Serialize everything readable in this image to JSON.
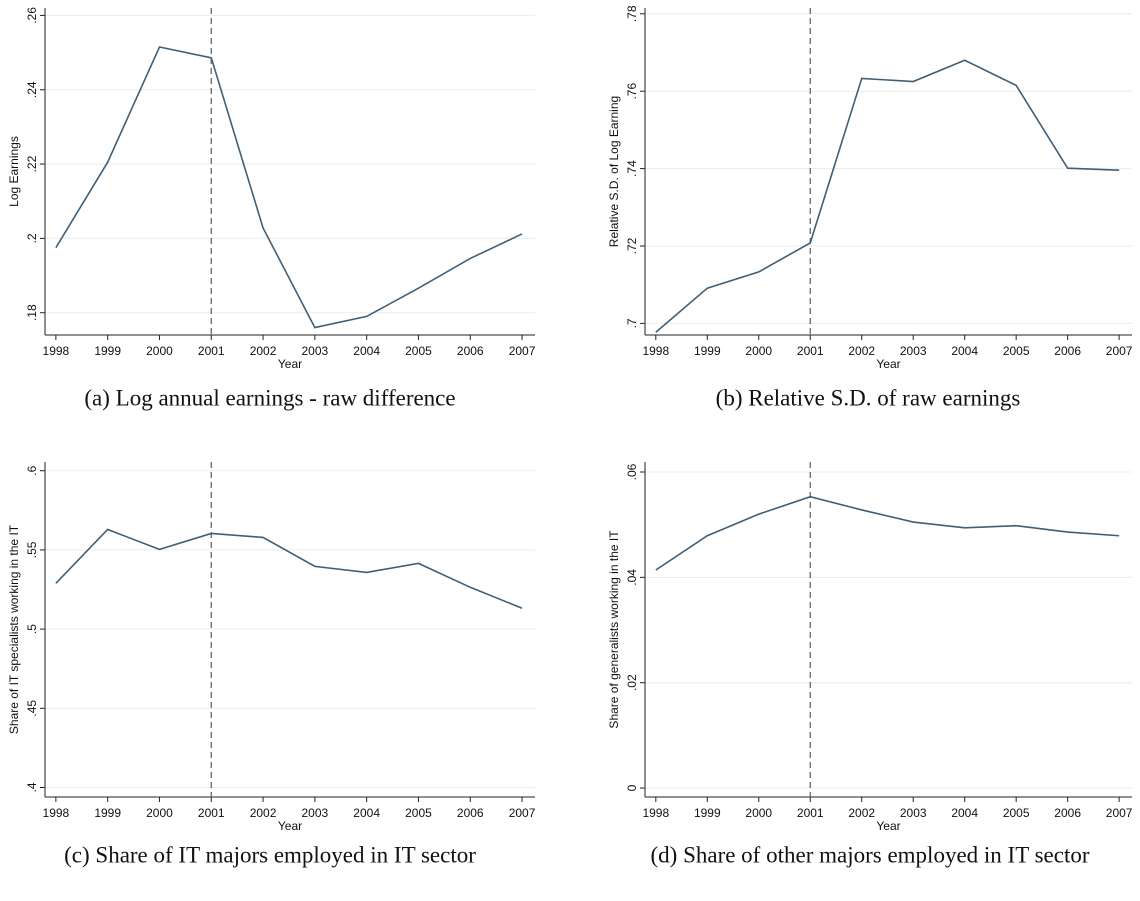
{
  "chart_data": [
    {
      "type": "line",
      "caption": "(a) Log annual earnings - raw difference",
      "ylabel": "Log Earnings",
      "xlabel": "Year",
      "x": [
        1998,
        1999,
        2000,
        2001,
        2002,
        2003,
        2004,
        2005,
        2006,
        2007
      ],
      "values": [
        0.1975,
        0.2205,
        0.2515,
        0.2486,
        0.2028,
        0.176,
        0.179,
        0.1866,
        0.1946,
        0.2012
      ],
      "color": "#3f5f78",
      "xlim": [
        1997.79,
        2007.25
      ],
      "xticks": [
        1998,
        1999,
        2000,
        2001,
        2002,
        2003,
        2004,
        2005,
        2006,
        2007
      ],
      "ylim": [
        0.174,
        0.262
      ],
      "yticks": [
        {
          "value": 0.18,
          "label": ".18"
        },
        {
          "value": 0.2,
          "label": ".2"
        },
        {
          "value": 0.22,
          "label": ".22"
        },
        {
          "value": 0.24,
          "label": ".24"
        },
        {
          "value": 0.26,
          "label": ".26"
        }
      ],
      "grid": true,
      "vline": 2001
    },
    {
      "type": "line",
      "caption": "(b) Relative S.D. of raw earnings",
      "ylabel": "Relative S.D. of Log Earning",
      "xlabel": "Year",
      "x": [
        1998,
        1999,
        2000,
        2001,
        2002,
        2003,
        2004,
        2005,
        2006,
        2007
      ],
      "values": [
        0.6977,
        0.7091,
        0.7133,
        0.7208,
        0.7633,
        0.7625,
        0.768,
        0.7615,
        0.7401,
        0.7396
      ],
      "color": "#3f5f78",
      "xlim": [
        1997.79,
        2007.25
      ],
      "xticks": [
        1998,
        1999,
        2000,
        2001,
        2002,
        2003,
        2004,
        2005,
        2006,
        2007
      ],
      "ylim": [
        0.697,
        0.7815
      ],
      "yticks": [
        {
          "value": 0.7,
          "label": ".7"
        },
        {
          "value": 0.72,
          "label": ".72"
        },
        {
          "value": 0.74,
          "label": ".74"
        },
        {
          "value": 0.76,
          "label": ".76"
        },
        {
          "value": 0.78,
          "label": ".78"
        }
      ],
      "grid": true,
      "vline": 2001
    },
    {
      "type": "line",
      "caption": "(c) Share of IT majors employed in IT sector",
      "ylabel": "Share of IT specialists working in the IT",
      "xlabel": "Year",
      "x": [
        1998,
        1999,
        2000,
        2001,
        2002,
        2003,
        2004,
        2005,
        2006,
        2007
      ],
      "values": [
        0.5289,
        0.5629,
        0.5503,
        0.5604,
        0.5579,
        0.5396,
        0.5358,
        0.5415,
        0.5264,
        0.5132
      ],
      "color": "#3f5f78",
      "xlim": [
        1997.79,
        2007.25
      ],
      "xticks": [
        1998,
        1999,
        2000,
        2001,
        2002,
        2003,
        2004,
        2005,
        2006,
        2007
      ],
      "ylim": [
        0.394,
        0.6055
      ],
      "yticks": [
        {
          "value": 0.4,
          "label": ".4"
        },
        {
          "value": 0.45,
          "label": ".45"
        },
        {
          "value": 0.5,
          "label": ".5"
        },
        {
          "value": 0.55,
          "label": ".55"
        },
        {
          "value": 0.6,
          "label": ".6"
        }
      ],
      "grid": true,
      "vline": 2001
    },
    {
      "type": "line",
      "caption": "(d) Share of other majors employed in IT sector",
      "ylabel": "Share of generalists working in the IT",
      "xlabel": "Year",
      "x": [
        1998,
        1999,
        2000,
        2001,
        2002,
        2003,
        2004,
        2005,
        2006,
        2007
      ],
      "values": [
        0.0414,
        0.0479,
        0.052,
        0.0553,
        0.0528,
        0.0505,
        0.0494,
        0.0498,
        0.0486,
        0.0479
      ],
      "color": "#3f5f78",
      "xlim": [
        1997.79,
        2007.25
      ],
      "xticks": [
        1998,
        1999,
        2000,
        2001,
        2002,
        2003,
        2004,
        2005,
        2006,
        2007
      ],
      "ylim": [
        -0.0017,
        0.0619
      ],
      "yticks": [
        0,
        {
          "value": 0.02,
          "label": ".02"
        },
        {
          "value": 0.04,
          "label": ".04"
        },
        {
          "value": 0.06,
          "label": ".06"
        }
      ],
      "grid": true,
      "vline": 2001
    }
  ]
}
